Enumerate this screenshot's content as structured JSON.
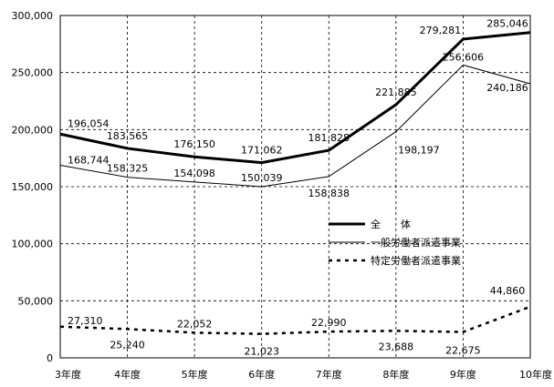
{
  "chart_data": {
    "type": "line",
    "categories": [
      "3年度",
      "4年度",
      "5年度",
      "6年度",
      "7年度",
      "8年度",
      "9年度",
      "10年度"
    ],
    "ylim": [
      0,
      300000
    ],
    "yticks": [
      "0",
      "50,000",
      "100,000",
      "150,000",
      "200,000",
      "250,000",
      "300,000"
    ],
    "grid": true,
    "legend_position": "center-right",
    "series": [
      {
        "name": "全　　体",
        "style": "thick",
        "color": "#000000",
        "values": [
          196054,
          183565,
          176150,
          171062,
          181828,
          221885,
          279281,
          285046
        ],
        "labels": [
          "196,054",
          "183,565",
          "176,150",
          "171,062",
          "181,828",
          "221,885",
          "279,281",
          "285,046"
        ]
      },
      {
        "name": "一般労働者派遣事業",
        "style": "thin",
        "color": "#000000",
        "values": [
          168744,
          158325,
          154098,
          150039,
          158838,
          198197,
          256606,
          240186
        ],
        "labels": [
          "168,744",
          "158,325",
          "154,098",
          "150,039",
          "158,838",
          "198,197",
          "256,606",
          "240,186"
        ]
      },
      {
        "name": "特定労働者派遣事業",
        "style": "dotted",
        "color": "#000000",
        "values": [
          27310,
          25240,
          22052,
          21023,
          22990,
          23688,
          22675,
          44860
        ],
        "labels": [
          "27,310",
          "25,240",
          "22,052",
          "21,023",
          "22,990",
          "23,688",
          "22,675",
          "44,860"
        ]
      }
    ]
  }
}
